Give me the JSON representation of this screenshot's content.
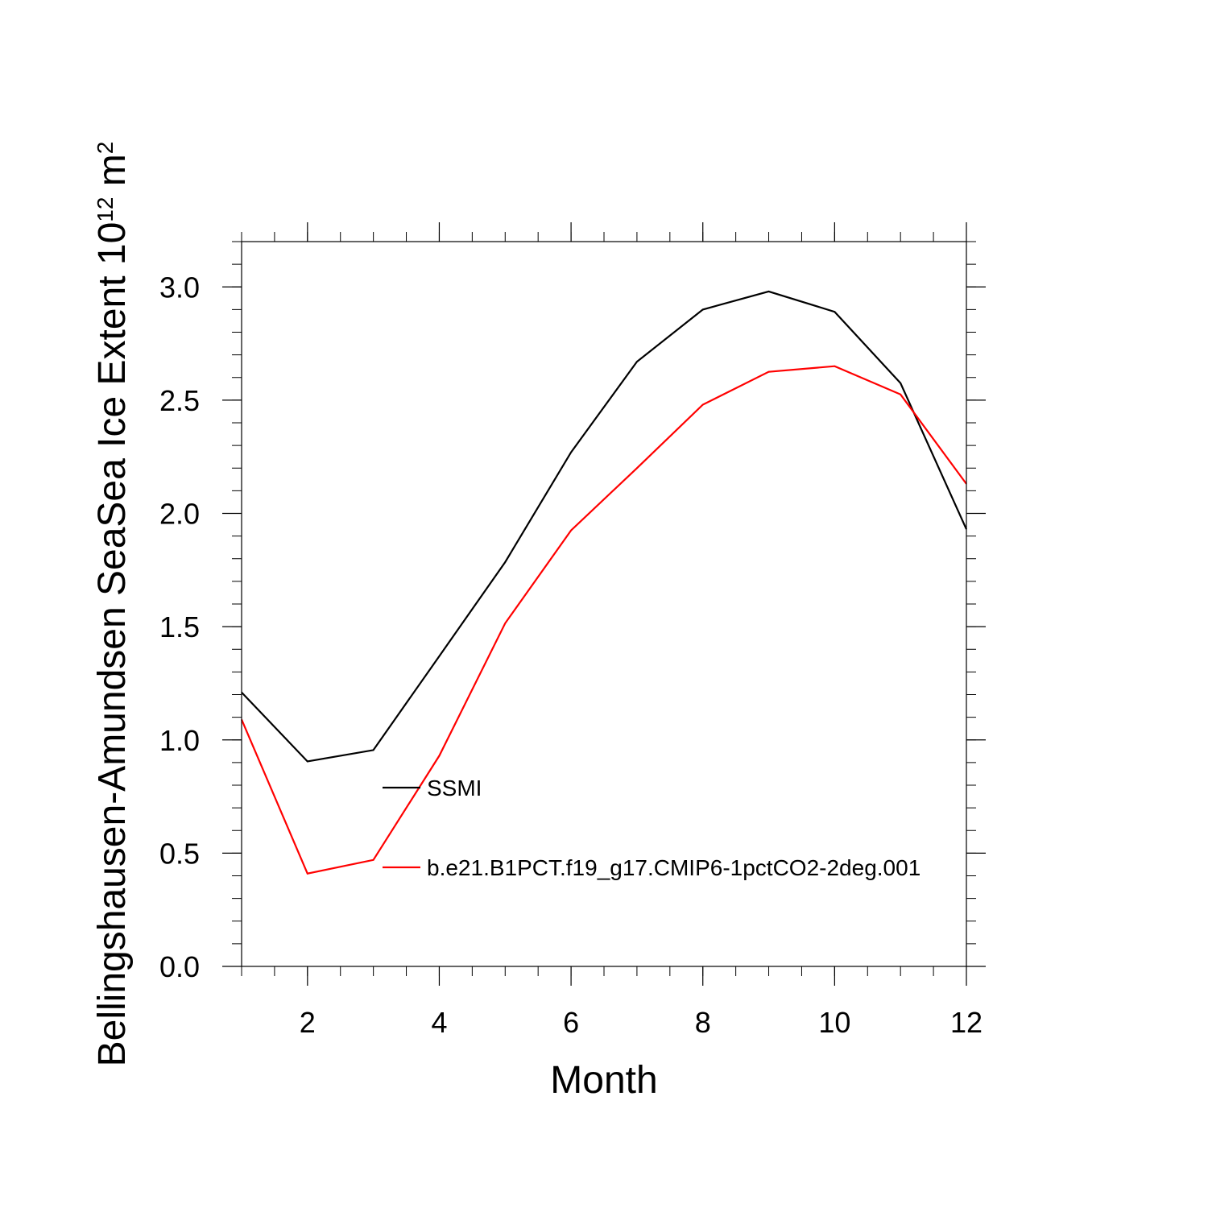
{
  "chart_data": {
    "type": "line",
    "title": "",
    "xlabel": "Month",
    "ylabel_main": "Bellingshausen-Amundsen SeaSea Ice Extent 10",
    "ylabel_exponent": "12",
    "ylabel_unit": " m",
    "ylabel_unit_exponent": "2",
    "x": [
      1,
      2,
      3,
      4,
      5,
      6,
      7,
      8,
      9,
      10,
      11,
      12
    ],
    "xlim": [
      1,
      12
    ],
    "ylim": [
      0,
      3.2
    ],
    "x_ticks": [
      2,
      4,
      6,
      8,
      10,
      12
    ],
    "x_tick_labels": [
      "2",
      "4",
      "6",
      "8",
      "10",
      "12"
    ],
    "y_ticks": [
      0,
      0.5,
      1.0,
      1.5,
      2.0,
      2.5,
      3.0
    ],
    "y_tick_labels": [
      "0.0",
      "0.5",
      "1.0",
      "1.5",
      "2.0",
      "2.5",
      "3.0"
    ],
    "grid": false,
    "legend_position": "inside-lower-center",
    "series": [
      {
        "name": "SSMI",
        "color": "#000000",
        "values": [
          1.21,
          0.905,
          0.955,
          1.37,
          1.785,
          2.27,
          2.67,
          2.9,
          2.98,
          2.89,
          2.575,
          1.93
        ]
      },
      {
        "name": "b.e21.B1PCT.f19_g17.CMIP6-1pctCO2-2deg.001",
        "color": "#ff0000",
        "values": [
          1.09,
          0.41,
          0.47,
          0.93,
          1.515,
          1.925,
          2.2,
          2.48,
          2.625,
          2.65,
          2.525,
          2.13
        ]
      }
    ]
  }
}
